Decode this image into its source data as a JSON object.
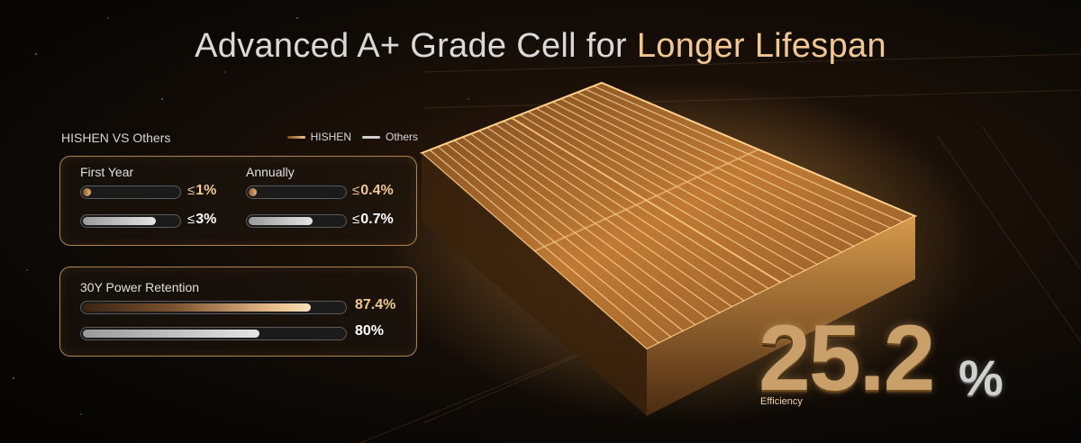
{
  "title": {
    "plain": "Advanced A+ Grade Cell for ",
    "gold": "Longer Lifespan"
  },
  "legend": {
    "vs": "HISHEN VS Others",
    "hishen": "HISHEN",
    "others": "Others"
  },
  "degradation": {
    "first_year": {
      "label": "First Year",
      "hishen": {
        "prefix": "≤",
        "value": "1%",
        "fill_fraction": 0.12
      },
      "others": {
        "prefix": "≤",
        "value": "3%",
        "fill_fraction": 0.77
      }
    },
    "annually": {
      "label": "Annually",
      "hishen": {
        "prefix": "≤",
        "value": "0.4%",
        "fill_fraction": 0.12
      },
      "others": {
        "prefix": "≤",
        "value": "0.7%",
        "fill_fraction": 0.68
      }
    }
  },
  "retention": {
    "label": "30Y Power Retention",
    "hishen": {
      "value": "87.4%",
      "fill_fraction": 0.874
    },
    "others": {
      "value": "80%",
      "fill_fraction": 0.68
    }
  },
  "efficiency": {
    "number": "25.2",
    "percent": "%",
    "label": "Efficiency"
  },
  "colors": {
    "gold": "#f1c792",
    "frame": "#b0834f",
    "silver": "#cfcfcf"
  }
}
